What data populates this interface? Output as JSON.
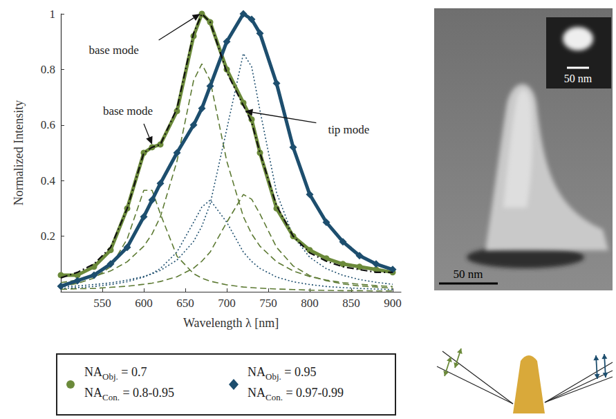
{
  "chart_data": {
    "type": "line",
    "x_label": "Wavelength λ [nm]",
    "y_label": "Normalized Intensity",
    "xlim": [
      500,
      910
    ],
    "xticks": [
      550,
      600,
      650,
      700,
      750,
      800,
      850,
      900
    ],
    "ylim": [
      0,
      1
    ],
    "yticks": [
      0.2,
      0.4,
      0.6,
      0.8,
      1
    ],
    "legend": "bottom",
    "x": [
      500,
      520,
      540,
      560,
      580,
      600,
      610,
      620,
      640,
      660,
      670,
      680,
      700,
      720,
      730,
      740,
      760,
      780,
      800,
      820,
      840,
      860,
      880,
      900
    ],
    "series": [
      {
        "color": "#6b8a3a",
        "marker": "circle",
        "line_style": "solid",
        "legend_text": [
          [
            "NA",
            "Obj.",
            "= 0.7"
          ],
          [
            "NA",
            "Con.",
            "= 0.8-0.95"
          ]
        ],
        "values": [
          0.06,
          0.06,
          0.09,
          0.15,
          0.3,
          0.5,
          0.52,
          0.53,
          0.65,
          0.92,
          1.0,
          0.97,
          0.8,
          0.68,
          0.62,
          0.5,
          0.3,
          0.2,
          0.15,
          0.12,
          0.1,
          0.09,
          0.08,
          0.07
        ]
      },
      {
        "color": "#1d4e6e",
        "marker": "diamond",
        "line_style": "solid",
        "legend_text": [
          [
            "NA",
            "Obj.",
            "= 0.95"
          ],
          [
            "NA",
            "Con.",
            "= 0.97-0.99"
          ]
        ],
        "values": [
          0.02,
          0.04,
          0.06,
          0.1,
          0.16,
          0.27,
          0.33,
          0.39,
          0.5,
          0.6,
          0.66,
          0.74,
          0.9,
          1.0,
          0.98,
          0.93,
          0.75,
          0.52,
          0.35,
          0.25,
          0.18,
          0.13,
          0.1,
          0.08
        ]
      },
      {
        "color": "#111111",
        "marker": "none",
        "line_style": "dashdot",
        "values": [
          0.05,
          0.07,
          0.1,
          0.16,
          0.3,
          0.5,
          0.52,
          0.53,
          0.66,
          0.93,
          1.0,
          0.97,
          0.79,
          0.67,
          0.61,
          0.5,
          0.31,
          0.2,
          0.14,
          0.11,
          0.09,
          0.08,
          0.07,
          0.07
        ]
      },
      {
        "color": "#5d7a33",
        "marker": "none",
        "line_style": "dashed",
        "values": [
          0.02,
          0.03,
          0.049,
          0.09,
          0.19,
          0.365,
          0.365,
          0.28,
          0.128,
          0.065,
          0.049,
          0.038,
          0.025,
          0.017,
          0.015,
          0.013,
          0.01,
          0.008,
          0.006,
          0.005,
          0.004,
          0.004,
          0.003,
          0.003
        ]
      },
      {
        "color": "#5d7a33",
        "marker": "none",
        "line_style": "dashed",
        "values": [
          0.033,
          0.042,
          0.055,
          0.075,
          0.108,
          0.164,
          0.208,
          0.27,
          0.47,
          0.76,
          0.82,
          0.76,
          0.47,
          0.27,
          0.208,
          0.164,
          0.108,
          0.075,
          0.055,
          0.042,
          0.033,
          0.027,
          0.022,
          0.019
        ]
      },
      {
        "color": "#5d7a33",
        "marker": "none",
        "line_style": "dashed",
        "values": [
          0.009,
          0.011,
          0.012,
          0.016,
          0.02,
          0.027,
          0.031,
          0.037,
          0.054,
          0.085,
          0.11,
          0.143,
          0.25,
          0.35,
          0.333,
          0.28,
          0.16,
          0.093,
          0.058,
          0.04,
          0.028,
          0.021,
          0.017,
          0.013
        ]
      },
      {
        "color": "#1d4e6e",
        "marker": "none",
        "line_style": "dotted",
        "values": [
          0.012,
          0.015,
          0.019,
          0.026,
          0.036,
          0.053,
          0.066,
          0.084,
          0.143,
          0.25,
          0.305,
          0.33,
          0.25,
          0.143,
          0.109,
          0.084,
          0.053,
          0.036,
          0.026,
          0.019,
          0.015,
          0.012,
          0.0098,
          0.008
        ]
      },
      {
        "color": "#1d4e6e",
        "marker": "none",
        "line_style": "dotted",
        "values": [
          0.018,
          0.021,
          0.026,
          0.032,
          0.042,
          0.055,
          0.065,
          0.077,
          0.114,
          0.181,
          0.236,
          0.316,
          0.585,
          0.857,
          0.81,
          0.653,
          0.357,
          0.2,
          0.124,
          0.083,
          0.059,
          0.044,
          0.034,
          0.027
        ]
      }
    ],
    "annotations": [
      {
        "text": "base mode",
        "x": 668,
        "y": 1.0
      },
      {
        "text": "base mode",
        "x": 610,
        "y": 0.53
      },
      {
        "text": "tip mode",
        "x": 722,
        "y": 0.65
      }
    ]
  },
  "sem_image": {
    "scale_bar": "50 nm",
    "inset_scale_bar": "50 nm"
  }
}
